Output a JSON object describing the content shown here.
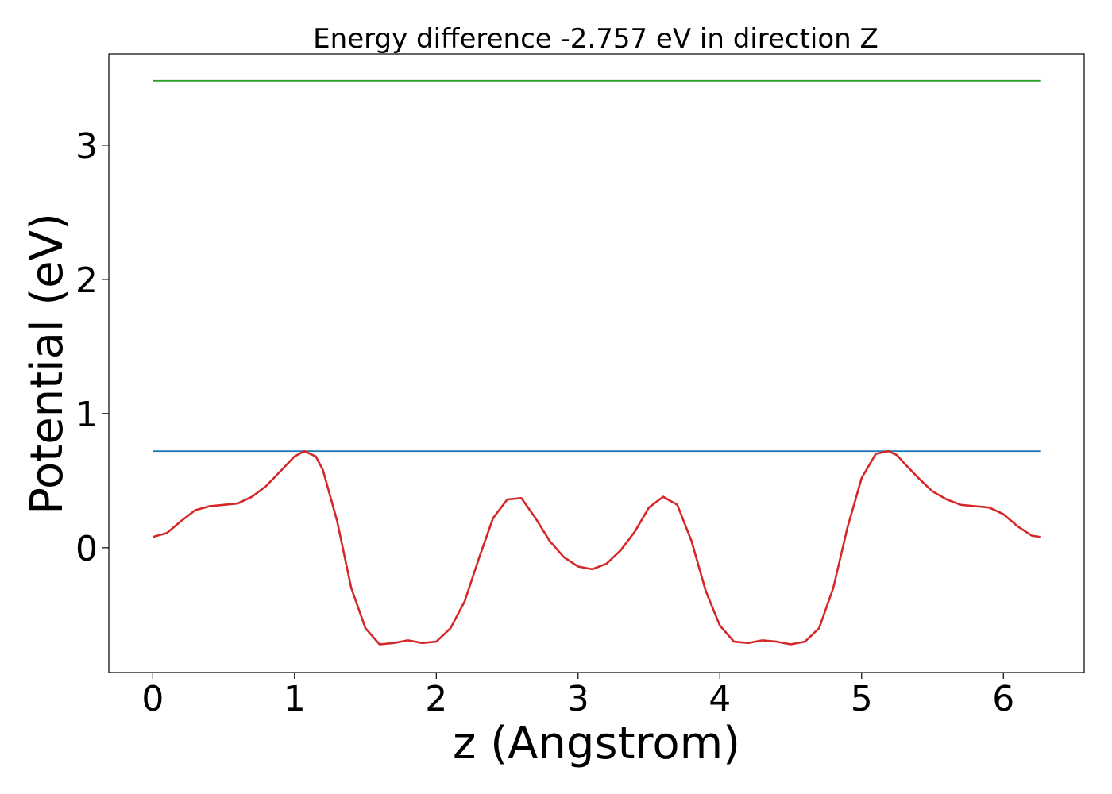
{
  "chart_data": {
    "type": "line",
    "title": "Energy difference -2.757 eV in direction Z",
    "xlabel": "z (Angstrom)",
    "ylabel": "Potential (eV)",
    "xlim": [
      -0.31,
      6.57
    ],
    "ylim": [
      -0.93,
      3.68
    ],
    "xticks": [
      0,
      1,
      2,
      3,
      4,
      5,
      6
    ],
    "yticks": [
      0,
      1,
      2,
      3
    ],
    "grid": false,
    "series": [
      {
        "color": "#d62728",
        "x": [
          0,
          0.1,
          0.2,
          0.3,
          0.4,
          0.5,
          0.6,
          0.7,
          0.8,
          0.9,
          1.0,
          1.07,
          1.15,
          1.2,
          1.3,
          1.4,
          1.5,
          1.6,
          1.7,
          1.8,
          1.9,
          2.0,
          2.1,
          2.2,
          2.3,
          2.4,
          2.5,
          2.6,
          2.7,
          2.8,
          2.9,
          3.0,
          3.1,
          3.2,
          3.3,
          3.4,
          3.5,
          3.6,
          3.7,
          3.8,
          3.9,
          4.0,
          4.1,
          4.2,
          4.3,
          4.4,
          4.5,
          4.6,
          4.7,
          4.8,
          4.9,
          5.0,
          5.1,
          5.19,
          5.25,
          5.3,
          5.4,
          5.5,
          5.6,
          5.7,
          5.8,
          5.9,
          6.0,
          6.1,
          6.2,
          6.26
        ],
        "y": [
          0.08,
          0.11,
          0.2,
          0.28,
          0.31,
          0.32,
          0.33,
          0.38,
          0.46,
          0.57,
          0.68,
          0.72,
          0.68,
          0.58,
          0.2,
          -0.3,
          -0.6,
          -0.72,
          -0.71,
          -0.69,
          -0.71,
          -0.7,
          -0.6,
          -0.4,
          -0.08,
          0.22,
          0.36,
          0.37,
          0.22,
          0.05,
          -0.07,
          -0.14,
          -0.16,
          -0.12,
          -0.02,
          0.12,
          0.3,
          0.38,
          0.32,
          0.05,
          -0.32,
          -0.58,
          -0.7,
          -0.71,
          -0.69,
          -0.7,
          -0.72,
          -0.7,
          -0.6,
          -0.3,
          0.15,
          0.52,
          0.7,
          0.72,
          0.69,
          0.63,
          0.52,
          0.42,
          0.36,
          0.32,
          0.31,
          0.3,
          0.25,
          0.16,
          0.09,
          0.08
        ]
      },
      {
        "color": "#1f77b4",
        "x": [
          0,
          6.26
        ],
        "y": [
          0.72,
          0.72
        ]
      },
      {
        "color": "#2ca02c",
        "x": [
          0,
          6.26
        ],
        "y": [
          3.48,
          3.48
        ]
      }
    ]
  }
}
